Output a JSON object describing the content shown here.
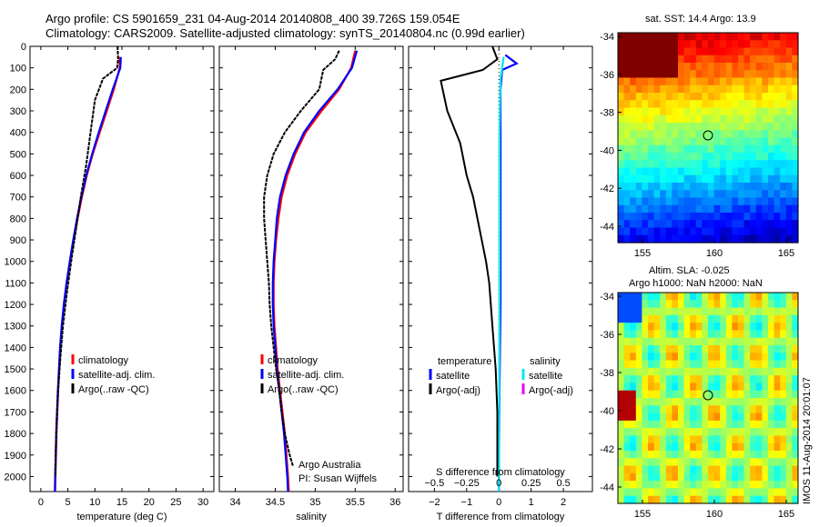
{
  "header": {
    "line1": "Argo profile: CS 5901659_231 04-Aug-2014 20140808_400 39.726S 159.054E",
    "line2": "Climatology: CARS2009. Satellite-adjusted climatology: synTS_20140804.nc (0.99d earlier)"
  },
  "depth_axis": {
    "ticks": [
      0,
      100,
      200,
      300,
      400,
      500,
      600,
      700,
      800,
      900,
      1000,
      1100,
      1200,
      1300,
      1400,
      1500,
      1600,
      1700,
      1800,
      1900,
      2000
    ],
    "range": [
      0,
      2070
    ],
    "reversed": true
  },
  "chart_data": [
    {
      "type": "line",
      "id": "temperature",
      "xlabel": "temperature (deg C)",
      "xticks": [
        0,
        5,
        10,
        15,
        20,
        25,
        30
      ],
      "xlim": [
        -2,
        32
      ],
      "legend": [
        "climatology",
        "satellite-adj. clim.",
        "Argo(..raw -QC)"
      ],
      "series": [
        {
          "name": "climatology",
          "color": "#ff0000",
          "points": [
            [
              14.6,
              50
            ],
            [
              14.6,
              100
            ],
            [
              13.5,
              200
            ],
            [
              12.2,
              300
            ],
            [
              10.9,
              400
            ],
            [
              9.6,
              500
            ],
            [
              8.5,
              600
            ],
            [
              7.6,
              700
            ],
            [
              6.8,
              800
            ],
            [
              6.1,
              900
            ],
            [
              5.4,
              1000
            ],
            [
              4.8,
              1100
            ],
            [
              4.3,
              1200
            ],
            [
              3.9,
              1300
            ],
            [
              3.6,
              1400
            ],
            [
              3.4,
              1500
            ],
            [
              3.2,
              1600
            ],
            [
              3.05,
              1700
            ],
            [
              2.9,
              1800
            ],
            [
              2.8,
              1900
            ],
            [
              2.7,
              2000
            ],
            [
              2.65,
              2070
            ]
          ]
        },
        {
          "name": "satellite-adj. clim.",
          "color": "#0000ff",
          "points": [
            [
              14.8,
              50
            ],
            [
              14.7,
              100
            ],
            [
              13.3,
              200
            ],
            [
              12.0,
              300
            ],
            [
              10.7,
              400
            ],
            [
              9.5,
              500
            ],
            [
              8.4,
              600
            ],
            [
              7.5,
              700
            ],
            [
              6.7,
              800
            ],
            [
              6.0,
              900
            ],
            [
              5.35,
              1000
            ],
            [
              4.75,
              1100
            ],
            [
              4.25,
              1200
            ],
            [
              3.85,
              1300
            ],
            [
              3.55,
              1400
            ],
            [
              3.35,
              1500
            ],
            [
              3.15,
              1600
            ],
            [
              3.0,
              1700
            ],
            [
              2.85,
              1800
            ],
            [
              2.75,
              1900
            ],
            [
              2.65,
              2000
            ],
            [
              2.6,
              2070
            ]
          ]
        },
        {
          "name": "Argo(..raw -QC)",
          "color": "#000000",
          "points": [
            [
              14.2,
              0
            ],
            [
              14.3,
              60
            ],
            [
              14.1,
              100
            ],
            [
              11.5,
              150
            ],
            [
              10.0,
              250
            ],
            [
              9.2,
              400
            ],
            [
              8.4,
              550
            ],
            [
              7.4,
              700
            ],
            [
              6.5,
              850
            ],
            [
              5.6,
              1000
            ],
            [
              4.8,
              1150
            ],
            [
              4.1,
              1300
            ],
            [
              3.6,
              1450
            ],
            [
              3.2,
              1600
            ],
            [
              2.9,
              1750
            ],
            [
              2.75,
              1900
            ],
            [
              2.7,
              2000
            ]
          ]
        }
      ]
    },
    {
      "type": "line",
      "id": "salinity",
      "xlabel": "salinity",
      "xticks": [
        34,
        34.5,
        35,
        35.5,
        36
      ],
      "xtick_labels": [
        "34",
        "34.5",
        "35",
        "35.5",
        "36"
      ],
      "xlim": [
        33.8,
        36.1
      ],
      "legend": [
        "climatology",
        "satellite-adj. clim.",
        "Argo(..raw -QC)"
      ],
      "annotation": [
        "Argo Australia",
        "PI: Susan Wijffels"
      ],
      "series": [
        {
          "name": "climatology",
          "color": "#ff0000",
          "points": [
            [
              35.5,
              20
            ],
            [
              35.45,
              100
            ],
            [
              35.3,
              200
            ],
            [
              35.08,
              300
            ],
            [
              34.88,
              400
            ],
            [
              34.75,
              500
            ],
            [
              34.65,
              600
            ],
            [
              34.58,
              700
            ],
            [
              34.54,
              800
            ],
            [
              34.51,
              900
            ],
            [
              34.49,
              1000
            ],
            [
              34.48,
              1100
            ],
            [
              34.48,
              1200
            ],
            [
              34.49,
              1300
            ],
            [
              34.51,
              1400
            ],
            [
              34.53,
              1500
            ],
            [
              34.56,
              1600
            ],
            [
              34.59,
              1700
            ],
            [
              34.62,
              1800
            ],
            [
              34.64,
              1900
            ],
            [
              34.66,
              2000
            ],
            [
              34.67,
              2070
            ]
          ]
        },
        {
          "name": "satellite-adj. clim.",
          "color": "#0000ff",
          "points": [
            [
              35.52,
              20
            ],
            [
              35.46,
              100
            ],
            [
              35.28,
              200
            ],
            [
              35.05,
              300
            ],
            [
              34.86,
              400
            ],
            [
              34.73,
              500
            ],
            [
              34.63,
              600
            ],
            [
              34.56,
              700
            ],
            [
              34.52,
              800
            ],
            [
              34.5,
              900
            ],
            [
              34.48,
              1000
            ],
            [
              34.47,
              1100
            ],
            [
              34.47,
              1200
            ],
            [
              34.48,
              1300
            ],
            [
              34.5,
              1400
            ],
            [
              34.52,
              1500
            ],
            [
              34.55,
              1600
            ],
            [
              34.58,
              1700
            ],
            [
              34.61,
              1800
            ],
            [
              34.63,
              1900
            ],
            [
              34.65,
              2000
            ],
            [
              34.66,
              2070
            ]
          ]
        },
        {
          "name": "Argo(..raw -QC)",
          "color": "#000000",
          "points": [
            [
              35.3,
              20
            ],
            [
              35.25,
              60
            ],
            [
              35.1,
              110
            ],
            [
              35.05,
              200
            ],
            [
              34.82,
              300
            ],
            [
              34.62,
              400
            ],
            [
              34.48,
              500
            ],
            [
              34.4,
              600
            ],
            [
              34.36,
              700
            ],
            [
              34.36,
              800
            ],
            [
              34.38,
              900
            ],
            [
              34.4,
              1000
            ],
            [
              34.42,
              1100
            ],
            [
              34.43,
              1200
            ],
            [
              34.45,
              1300
            ],
            [
              34.48,
              1400
            ],
            [
              34.51,
              1500
            ],
            [
              34.55,
              1600
            ],
            [
              34.58,
              1700
            ],
            [
              34.62,
              1800
            ],
            [
              34.68,
              1900
            ],
            [
              34.72,
              1950
            ]
          ]
        }
      ]
    },
    {
      "type": "line",
      "id": "difference",
      "xlabel": "T difference from climatology",
      "xlabel_top": "S difference from climatology",
      "xticks": [
        -2,
        -1,
        0,
        1,
        2
      ],
      "xtick_labels": [
        "−2",
        "−1",
        "0",
        "1",
        "2"
      ],
      "xticks_top": [
        -0.5,
        -0.25,
        0,
        0.25,
        0.5
      ],
      "xtick_labels_top": [
        "−0.5",
        "−0.25",
        "0",
        "0.25",
        "0.5"
      ],
      "xlim": [
        -2.8,
        2.9
      ],
      "legend_headers": [
        "temperature",
        "salinity"
      ],
      "legend": [
        "satellite",
        "Argo(-adj)",
        "satellite",
        "Argo(-adj)"
      ],
      "series": [
        {
          "name": "temperature satellite",
          "color": "#0000ff",
          "points": [
            [
              0.2,
              40
            ],
            [
              0.55,
              80
            ],
            [
              0.1,
              110
            ],
            [
              0.05,
              200
            ],
            [
              0.05,
              400
            ],
            [
              0.05,
              800
            ],
            [
              0.05,
              1200
            ],
            [
              0.02,
              1600
            ],
            [
              0.0,
              2000
            ],
            [
              0.0,
              2070
            ]
          ]
        },
        {
          "name": "salinity satellite",
          "color": "#00e5ee",
          "points": [
            [
              0.15,
              50
            ],
            [
              0.05,
              150
            ],
            [
              0.02,
              400
            ],
            [
              0.02,
              800
            ],
            [
              0.02,
              1200
            ],
            [
              0.01,
              1600
            ],
            [
              0.0,
              2070
            ]
          ]
        },
        {
          "name": "temperature Argo(-adj)",
          "color": "#000000",
          "points": [
            [
              -0.2,
              0
            ],
            [
              -0.05,
              60
            ],
            [
              -0.5,
              110
            ],
            [
              -1.8,
              160
            ],
            [
              -1.6,
              300
            ],
            [
              -1.2,
              450
            ],
            [
              -1.0,
              600
            ],
            [
              -0.8,
              700
            ],
            [
              -0.6,
              850
            ],
            [
              -0.4,
              1000
            ],
            [
              -0.3,
              1100
            ],
            [
              -0.2,
              1300
            ],
            [
              -0.1,
              1500
            ],
            [
              -0.05,
              1700
            ],
            [
              -0.05,
              1900
            ],
            [
              -0.05,
              2000
            ]
          ]
        }
      ]
    }
  ],
  "maps": {
    "sst": {
      "title": "sat. SST: 14.4 Argo: 13.9",
      "yticks": [
        "-34",
        "-36",
        "-38",
        "-40",
        "-42",
        "-44"
      ],
      "xticks": [
        "155",
        "160",
        "165"
      ]
    },
    "sla": {
      "title1": "Altim. SLA: -0.025",
      "title2": "Argo h1000: NaN h2000: NaN",
      "yticks": [
        "-34",
        "-36",
        "-38",
        "-40",
        "-42",
        "-44"
      ],
      "xticks": [
        "155",
        "160",
        "165"
      ]
    }
  },
  "credit": "IMOS 11-Aug-2014 20:01:07"
}
